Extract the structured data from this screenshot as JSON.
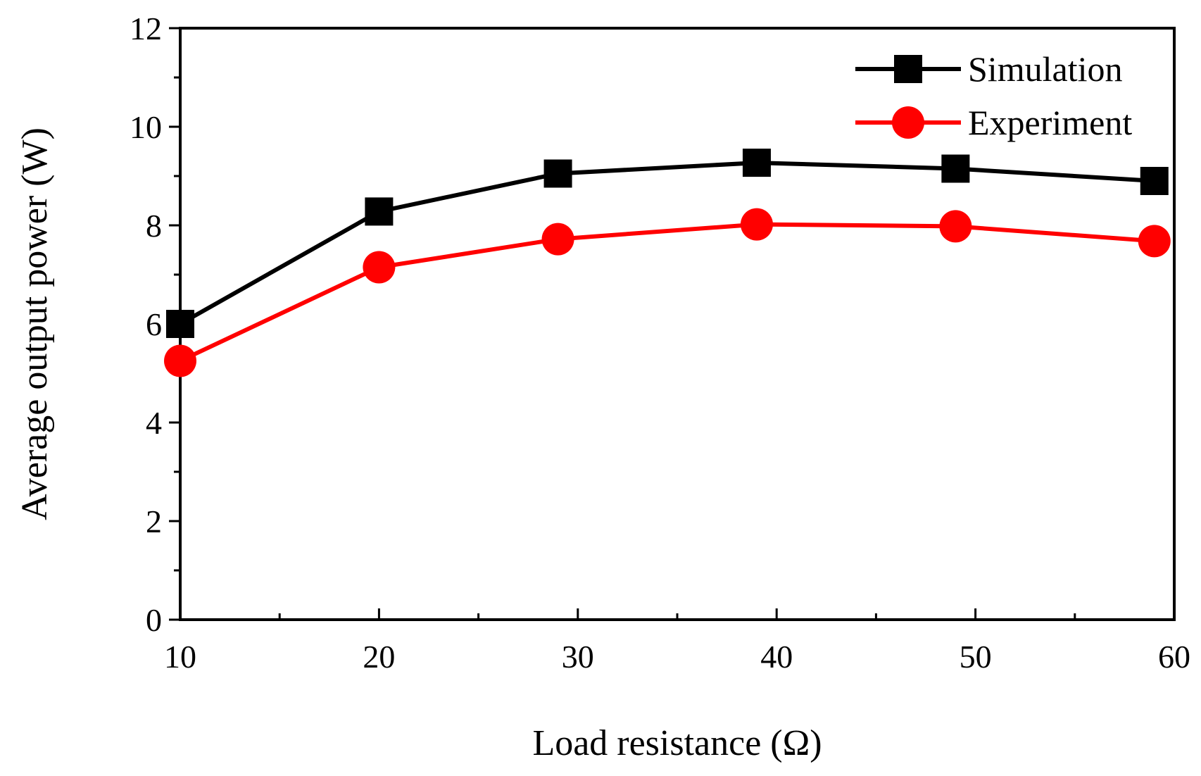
{
  "chart_data": {
    "type": "line",
    "title": "",
    "xlabel": "Load resistance (Ω)",
    "ylabel": "Average output power (W)",
    "xlim": [
      10,
      60
    ],
    "ylim": [
      0,
      12
    ],
    "xticks": [
      10,
      20,
      30,
      40,
      50,
      60
    ],
    "yticks": [
      0,
      2,
      4,
      6,
      8,
      10,
      12
    ],
    "xticks_minor": [
      15,
      25,
      35,
      45,
      55
    ],
    "yticks_minor": [
      1,
      3,
      5,
      7,
      9,
      11
    ],
    "grid": false,
    "legend_position": "top-right",
    "series": [
      {
        "name": "Simulation",
        "color": "#000000",
        "marker": "square",
        "x": [
          10,
          20,
          29,
          39,
          49,
          59
        ],
        "y": [
          6.0,
          8.28,
          9.05,
          9.27,
          9.15,
          8.9
        ]
      },
      {
        "name": "Experiment",
        "color": "#ff0000",
        "marker": "circle",
        "x": [
          10,
          20,
          29,
          39,
          49,
          59
        ],
        "y": [
          5.25,
          7.15,
          7.72,
          8.02,
          7.98,
          7.68
        ]
      }
    ]
  }
}
